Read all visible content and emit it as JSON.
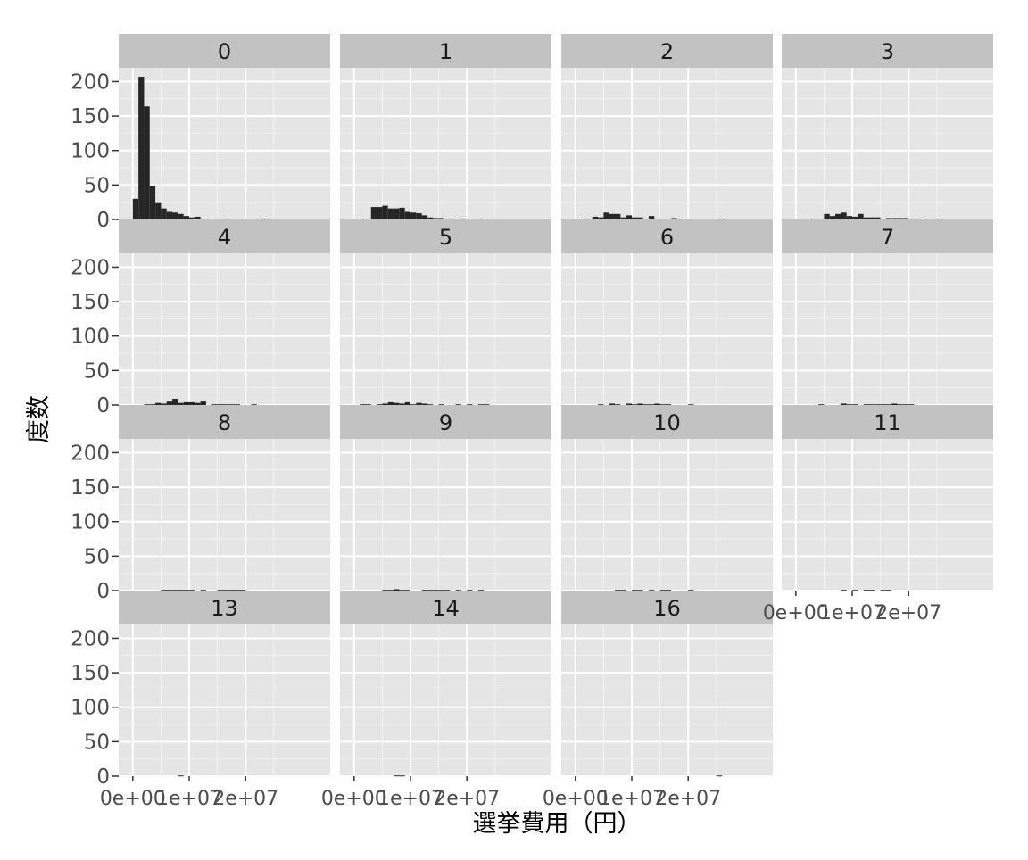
{
  "chart_data": {
    "type": "bar",
    "subtype": "faceted-histogram",
    "xlabel": "選挙費用（円）",
    "ylabel": "度数",
    "ylim": [
      0,
      220
    ],
    "xlim": [
      -2500000,
      35000000
    ],
    "bin_width": 1000000,
    "y_ticks": [
      0,
      50,
      100,
      150,
      200
    ],
    "x_ticks": [
      {
        "value": 0,
        "label": "0e+00"
      },
      {
        "value": 10000000,
        "label": "1e+07"
      },
      {
        "value": 20000000,
        "label": "2e+07"
      }
    ],
    "grid": true,
    "background_color": "#e5e5e5",
    "strip_color": "#c2c2c2",
    "bar_color": "#262626",
    "panels": [
      {
        "label": "0",
        "bins": [
          {
            "x": 0,
            "count": 30
          },
          {
            "x": 1000000,
            "count": 207
          },
          {
            "x": 2000000,
            "count": 164
          },
          {
            "x": 3000000,
            "count": 49
          },
          {
            "x": 4000000,
            "count": 25
          },
          {
            "x": 5000000,
            "count": 16
          },
          {
            "x": 6000000,
            "count": 11
          },
          {
            "x": 7000000,
            "count": 10
          },
          {
            "x": 8000000,
            "count": 8
          },
          {
            "x": 9000000,
            "count": 5
          },
          {
            "x": 10000000,
            "count": 3
          },
          {
            "x": 11000000,
            "count": 4
          },
          {
            "x": 12000000,
            "count": 1
          },
          {
            "x": 13000000,
            "count": 1
          },
          {
            "x": 16000000,
            "count": 1
          },
          {
            "x": 23000000,
            "count": 1
          }
        ]
      },
      {
        "label": "1",
        "bins": [
          {
            "x": 1000000,
            "count": 1
          },
          {
            "x": 2000000,
            "count": 1
          },
          {
            "x": 3000000,
            "count": 18
          },
          {
            "x": 4000000,
            "count": 18
          },
          {
            "x": 5000000,
            "count": 20
          },
          {
            "x": 6000000,
            "count": 16
          },
          {
            "x": 7000000,
            "count": 16
          },
          {
            "x": 8000000,
            "count": 17
          },
          {
            "x": 9000000,
            "count": 11
          },
          {
            "x": 10000000,
            "count": 10
          },
          {
            "x": 11000000,
            "count": 9
          },
          {
            "x": 12000000,
            "count": 6
          },
          {
            "x": 13000000,
            "count": 3
          },
          {
            "x": 14000000,
            "count": 2
          },
          {
            "x": 15000000,
            "count": 2
          },
          {
            "x": 17000000,
            "count": 1
          },
          {
            "x": 19000000,
            "count": 1
          },
          {
            "x": 22000000,
            "count": 1
          }
        ]
      },
      {
        "label": "2",
        "bins": [
          {
            "x": 1000000,
            "count": 1
          },
          {
            "x": 3000000,
            "count": 4
          },
          {
            "x": 4000000,
            "count": 3
          },
          {
            "x": 5000000,
            "count": 10
          },
          {
            "x": 6000000,
            "count": 8
          },
          {
            "x": 7000000,
            "count": 8
          },
          {
            "x": 8000000,
            "count": 3
          },
          {
            "x": 9000000,
            "count": 6
          },
          {
            "x": 10000000,
            "count": 3
          },
          {
            "x": 11000000,
            "count": 3
          },
          {
            "x": 12000000,
            "count": 1
          },
          {
            "x": 13000000,
            "count": 5
          },
          {
            "x": 17000000,
            "count": 2
          },
          {
            "x": 18000000,
            "count": 1
          },
          {
            "x": 25000000,
            "count": 1
          }
        ]
      },
      {
        "label": "3",
        "bins": [
          {
            "x": 3000000,
            "count": 1
          },
          {
            "x": 4000000,
            "count": 1
          },
          {
            "x": 5000000,
            "count": 8
          },
          {
            "x": 6000000,
            "count": 5
          },
          {
            "x": 7000000,
            "count": 8
          },
          {
            "x": 8000000,
            "count": 10
          },
          {
            "x": 9000000,
            "count": 5
          },
          {
            "x": 10000000,
            "count": 4
          },
          {
            "x": 11000000,
            "count": 8
          },
          {
            "x": 12000000,
            "count": 3
          },
          {
            "x": 13000000,
            "count": 3
          },
          {
            "x": 14000000,
            "count": 3
          },
          {
            "x": 15000000,
            "count": 1
          },
          {
            "x": 16000000,
            "count": 2
          },
          {
            "x": 17000000,
            "count": 2
          },
          {
            "x": 18000000,
            "count": 2
          },
          {
            "x": 19000000,
            "count": 2
          },
          {
            "x": 21000000,
            "count": 1
          },
          {
            "x": 23000000,
            "count": 1
          },
          {
            "x": 24000000,
            "count": 1
          }
        ]
      },
      {
        "label": "4",
        "bins": [
          {
            "x": 2000000,
            "count": 1
          },
          {
            "x": 3000000,
            "count": 1
          },
          {
            "x": 4000000,
            "count": 3
          },
          {
            "x": 5000000,
            "count": 2
          },
          {
            "x": 6000000,
            "count": 5
          },
          {
            "x": 7000000,
            "count": 9
          },
          {
            "x": 8000000,
            "count": 3
          },
          {
            "x": 9000000,
            "count": 4
          },
          {
            "x": 10000000,
            "count": 4
          },
          {
            "x": 11000000,
            "count": 3
          },
          {
            "x": 12000000,
            "count": 5
          },
          {
            "x": 14000000,
            "count": 1
          },
          {
            "x": 15000000,
            "count": 1
          },
          {
            "x": 16000000,
            "count": 1
          },
          {
            "x": 17000000,
            "count": 1
          },
          {
            "x": 18000000,
            "count": 1
          },
          {
            "x": 21000000,
            "count": 1
          }
        ]
      },
      {
        "label": "5",
        "bins": [
          {
            "x": 1000000,
            "count": 1
          },
          {
            "x": 2000000,
            "count": 1
          },
          {
            "x": 4000000,
            "count": 1
          },
          {
            "x": 5000000,
            "count": 2
          },
          {
            "x": 6000000,
            "count": 4
          },
          {
            "x": 7000000,
            "count": 3
          },
          {
            "x": 8000000,
            "count": 2
          },
          {
            "x": 9000000,
            "count": 4
          },
          {
            "x": 10000000,
            "count": 1
          },
          {
            "x": 11000000,
            "count": 3
          },
          {
            "x": 12000000,
            "count": 2
          },
          {
            "x": 13000000,
            "count": 1
          },
          {
            "x": 15000000,
            "count": 1
          },
          {
            "x": 18000000,
            "count": 1
          },
          {
            "x": 20000000,
            "count": 1
          },
          {
            "x": 22000000,
            "count": 1
          },
          {
            "x": 23000000,
            "count": 1
          }
        ]
      },
      {
        "label": "6",
        "bins": [
          {
            "x": 4000000,
            "count": 1
          },
          {
            "x": 6000000,
            "count": 2
          },
          {
            "x": 7000000,
            "count": 1
          },
          {
            "x": 9000000,
            "count": 2
          },
          {
            "x": 10000000,
            "count": 1
          },
          {
            "x": 11000000,
            "count": 2
          },
          {
            "x": 12000000,
            "count": 1
          },
          {
            "x": 13000000,
            "count": 1
          },
          {
            "x": 14000000,
            "count": 2
          },
          {
            "x": 15000000,
            "count": 1
          },
          {
            "x": 16000000,
            "count": 1
          },
          {
            "x": 20000000,
            "count": 1
          }
        ]
      },
      {
        "label": "7",
        "bins": [
          {
            "x": 4000000,
            "count": 1
          },
          {
            "x": 8000000,
            "count": 2
          },
          {
            "x": 9000000,
            "count": 1
          },
          {
            "x": 10000000,
            "count": 1
          },
          {
            "x": 12000000,
            "count": 1
          },
          {
            "x": 13000000,
            "count": 1
          },
          {
            "x": 14000000,
            "count": 1
          },
          {
            "x": 15000000,
            "count": 1
          },
          {
            "x": 16000000,
            "count": 1
          },
          {
            "x": 17000000,
            "count": 2
          },
          {
            "x": 18000000,
            "count": 1
          },
          {
            "x": 19000000,
            "count": 1
          },
          {
            "x": 20000000,
            "count": 1
          }
        ]
      },
      {
        "label": "8",
        "bins": [
          {
            "x": 5000000,
            "count": 1
          },
          {
            "x": 6000000,
            "count": 1
          },
          {
            "x": 7000000,
            "count": 1
          },
          {
            "x": 8000000,
            "count": 1
          },
          {
            "x": 9000000,
            "count": 1
          },
          {
            "x": 10000000,
            "count": 1
          },
          {
            "x": 12000000,
            "count": 1
          },
          {
            "x": 15000000,
            "count": 1
          },
          {
            "x": 16000000,
            "count": 1
          },
          {
            "x": 17000000,
            "count": 1
          },
          {
            "x": 18000000,
            "count": 1
          },
          {
            "x": 19000000,
            "count": 1
          }
        ]
      },
      {
        "label": "9",
        "bins": [
          {
            "x": 5000000,
            "count": 1
          },
          {
            "x": 6000000,
            "count": 1
          },
          {
            "x": 7000000,
            "count": 2
          },
          {
            "x": 8000000,
            "count": 1
          },
          {
            "x": 9000000,
            "count": 1
          },
          {
            "x": 12000000,
            "count": 1
          },
          {
            "x": 13000000,
            "count": 1
          },
          {
            "x": 14000000,
            "count": 1
          },
          {
            "x": 15000000,
            "count": 1
          },
          {
            "x": 16000000,
            "count": 1
          },
          {
            "x": 18000000,
            "count": 1
          },
          {
            "x": 20000000,
            "count": 1
          },
          {
            "x": 22000000,
            "count": 1
          }
        ]
      },
      {
        "label": "10",
        "bins": [
          {
            "x": 7000000,
            "count": 1
          },
          {
            "x": 8000000,
            "count": 1
          },
          {
            "x": 10000000,
            "count": 1
          },
          {
            "x": 11000000,
            "count": 1
          },
          {
            "x": 13000000,
            "count": 1
          },
          {
            "x": 15000000,
            "count": 1
          },
          {
            "x": 16000000,
            "count": 1
          },
          {
            "x": 20000000,
            "count": 1
          }
        ]
      },
      {
        "label": "11",
        "bins": [
          {
            "x": 8000000,
            "count": 1
          },
          {
            "x": 10000000,
            "count": 1
          },
          {
            "x": 12000000,
            "count": 1
          },
          {
            "x": 13000000,
            "count": 1
          },
          {
            "x": 15000000,
            "count": 1
          },
          {
            "x": 16000000,
            "count": 1
          }
        ]
      },
      {
        "label": "13",
        "bins": [
          {
            "x": 8000000,
            "count": 1
          }
        ]
      },
      {
        "label": "14",
        "bins": [
          {
            "x": 7000000,
            "count": 1
          },
          {
            "x": 8000000,
            "count": 1
          }
        ]
      },
      {
        "label": "16",
        "bins": [
          {
            "x": 25000000,
            "count": 1
          }
        ]
      }
    ]
  }
}
